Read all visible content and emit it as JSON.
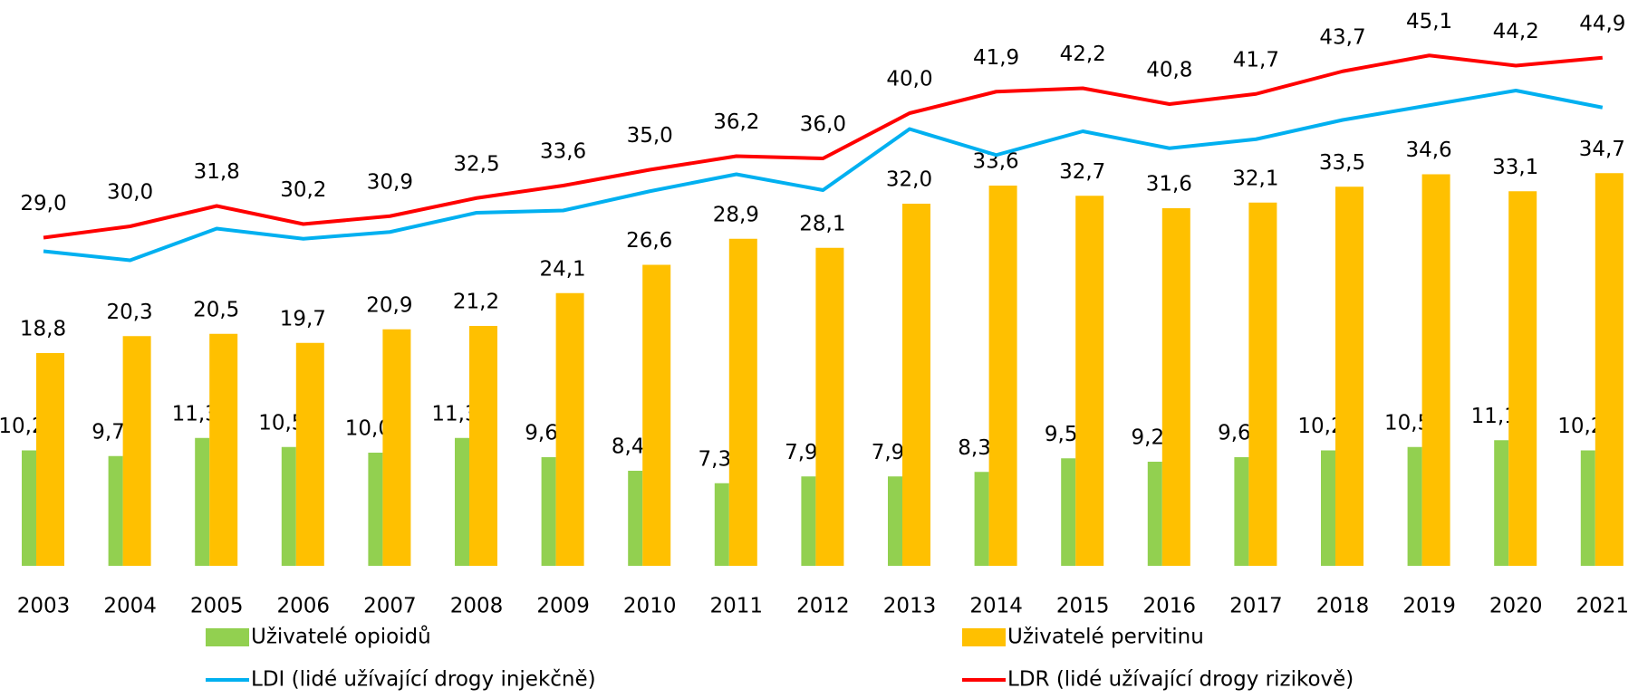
{
  "chart_data": {
    "type": "bar",
    "categories": [
      "2003",
      "2004",
      "2005",
      "2006",
      "2007",
      "2008",
      "2009",
      "2010",
      "2011",
      "2012",
      "2013",
      "2014",
      "2015",
      "2016",
      "2017",
      "2018",
      "2019",
      "2020",
      "2021"
    ],
    "ylim": [
      0,
      50
    ],
    "legend": "bottom",
    "series": [
      {
        "name": "Uživatelé opioidů",
        "type": "bar",
        "color": "#92d050",
        "values": [
          10.2,
          9.7,
          11.3,
          10.5,
          10.0,
          11.3,
          9.6,
          8.4,
          7.3,
          7.9,
          7.9,
          8.3,
          9.5,
          9.2,
          9.6,
          10.2,
          10.5,
          11.1,
          10.2
        ],
        "value_labels": [
          "10,2",
          "9,7",
          "11,3",
          "10,5",
          "10,0",
          "11,3",
          "9,6",
          "8,4",
          "7,3",
          "7,9",
          "7,9",
          "8,3",
          "9,5",
          "9,2",
          "9,6",
          "10,2",
          "10,5",
          "11,1",
          "10,2"
        ]
      },
      {
        "name": "Uživatelé pervitinu",
        "type": "bar",
        "color": "#ffc000",
        "values": [
          18.8,
          20.3,
          20.5,
          19.7,
          20.9,
          21.2,
          24.1,
          26.6,
          28.9,
          28.1,
          32.0,
          33.6,
          32.7,
          31.6,
          32.1,
          33.5,
          34.6,
          33.1,
          34.7
        ],
        "value_labels": [
          "18,8",
          "20,3",
          "20,5",
          "19,7",
          "20,9",
          "21,2",
          "24,1",
          "26,6",
          "28,9",
          "28,1",
          "32,0",
          "33,6",
          "32,7",
          "31,6",
          "32,1",
          "33,5",
          "34,6",
          "33,1",
          "34,7"
        ]
      },
      {
        "name": "LDI (lidé užívající drogy injekčně)",
        "type": "line",
        "color": "#00b0f0",
        "values": [
          27.8,
          27.0,
          29.8,
          28.9,
          29.5,
          31.2,
          31.4,
          33.1,
          34.6,
          33.2,
          38.6,
          36.3,
          38.4,
          36.9,
          37.7,
          39.4,
          40.7,
          42.0,
          40.5
        ]
      },
      {
        "name": "LDR (lidé užívající drogy rizikově)",
        "type": "line",
        "color": "#ff0000",
        "values": [
          29.0,
          30.0,
          31.8,
          30.2,
          30.9,
          32.5,
          33.6,
          35.0,
          36.2,
          36.0,
          40.0,
          41.9,
          42.2,
          40.8,
          41.7,
          43.7,
          45.1,
          44.2,
          44.9
        ],
        "value_labels": [
          "29,0",
          "30,0",
          "31,8",
          "30,2",
          "30,9",
          "32,5",
          "33,6",
          "35,0",
          "36,2",
          "36,0",
          "40,0",
          "41,9",
          "42,2",
          "40,8",
          "41,7",
          "43,7",
          "45,1",
          "44,2",
          "44,9"
        ]
      }
    ]
  }
}
